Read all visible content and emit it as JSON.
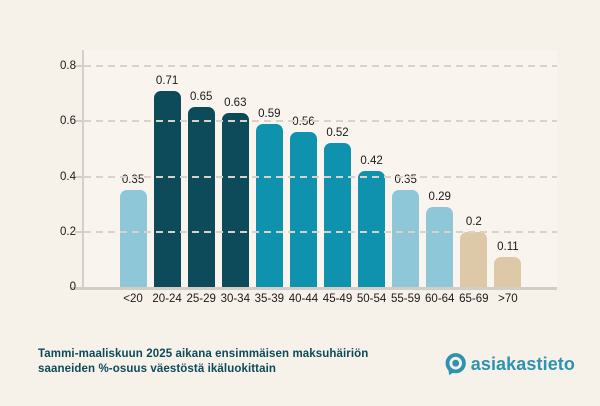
{
  "chart_data": {
    "type": "bar",
    "categories": [
      "<20",
      "20-24",
      "25-29",
      "30-34",
      "35-39",
      "40-44",
      "45-49",
      "50-54",
      "55-59",
      "60-64",
      "65-69",
      ">70"
    ],
    "values": [
      0.35,
      0.71,
      0.65,
      0.63,
      0.59,
      0.56,
      0.52,
      0.42,
      0.35,
      0.29,
      0.2,
      0.11
    ],
    "bar_color_keys": [
      "light",
      "dark",
      "dark",
      "dark",
      "medium",
      "medium",
      "medium",
      "medium",
      "light",
      "light",
      "tan",
      "tan"
    ],
    "palette": {
      "light": "#8ec8d8",
      "dark": "#0d4a5a",
      "medium": "#0f92ad",
      "tan": "#ddc8a8"
    },
    "y_ticks": [
      0,
      0.2,
      0.4,
      0.6,
      0.8
    ],
    "ylim": [
      0,
      0.8
    ],
    "grid": "horizontal-dashed",
    "value_labels": true,
    "legend": "none",
    "title": "Tammi-maaliskuun 2025 aikana ensimmäisen maksuhäiriön saaneiden %-osuus väestöstä ikäluokittain",
    "xlabel": "",
    "ylabel": ""
  },
  "caption": {
    "line1": "Tammi-maaliskuun 2025 aikana ensimmäisen maksuhäiriön",
    "line2": "saaneiden %-osuus väestöstä ikäluokittain",
    "color": "#0d4a5a"
  },
  "logo": {
    "text": "asiakastieto",
    "color": "#2e93b0",
    "icon": "target-pin-icon"
  },
  "page": {
    "background": "#f6f1e9",
    "plot_background": "#f9f5ee"
  }
}
